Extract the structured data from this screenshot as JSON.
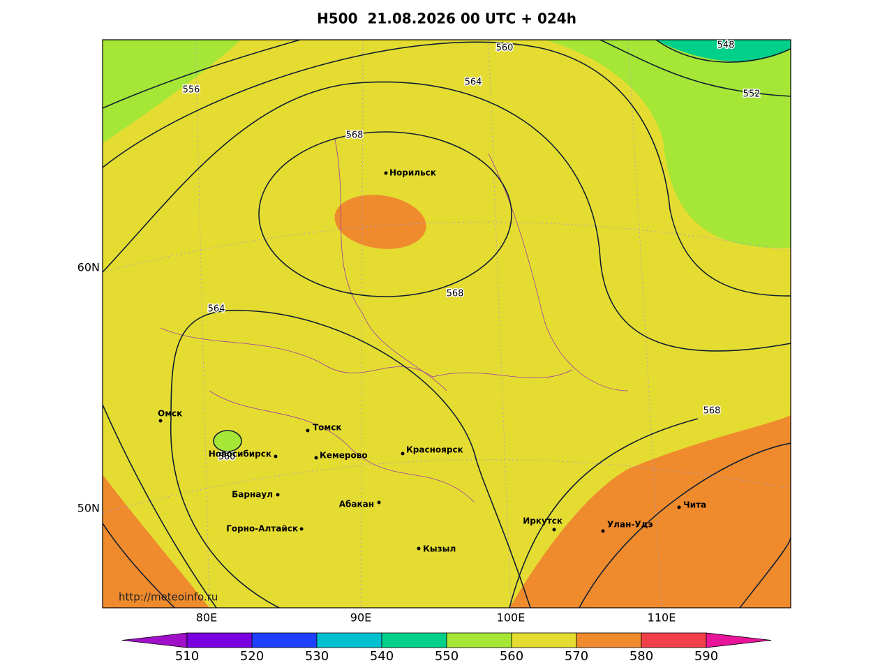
{
  "header": {
    "title": "H500  21.08.2026 00 UTC + 024h"
  },
  "map": {
    "lat_labels": [
      "60N",
      "50N"
    ],
    "lon_labels": [
      "80E",
      "90E",
      "100E",
      "110E"
    ],
    "contour_labels": [
      "560",
      "564",
      "556",
      "568",
      "568",
      "564",
      "560",
      "568",
      "552",
      "548"
    ],
    "cities": [
      "Норильск",
      "Омск",
      "Томск",
      "Новосибирск",
      "Кемерово",
      "Красноярск",
      "Барнаул",
      "Абакан",
      "Горно-Алтайск",
      "Иркутск",
      "Улан-Удэ",
      "Чита",
      "Кызыл"
    ],
    "watermark": "http://meteoinfo.ru"
  },
  "colorbar": {
    "levels": [
      510,
      520,
      530,
      540,
      550,
      560,
      570,
      580,
      590
    ],
    "colors": [
      "#a010c8",
      "#7a00e0",
      "#2040ff",
      "#00c0d0",
      "#00d08a",
      "#a5e636",
      "#e5dc32",
      "#ef8a2d",
      "#f2404a",
      "#e8149a"
    ]
  }
}
